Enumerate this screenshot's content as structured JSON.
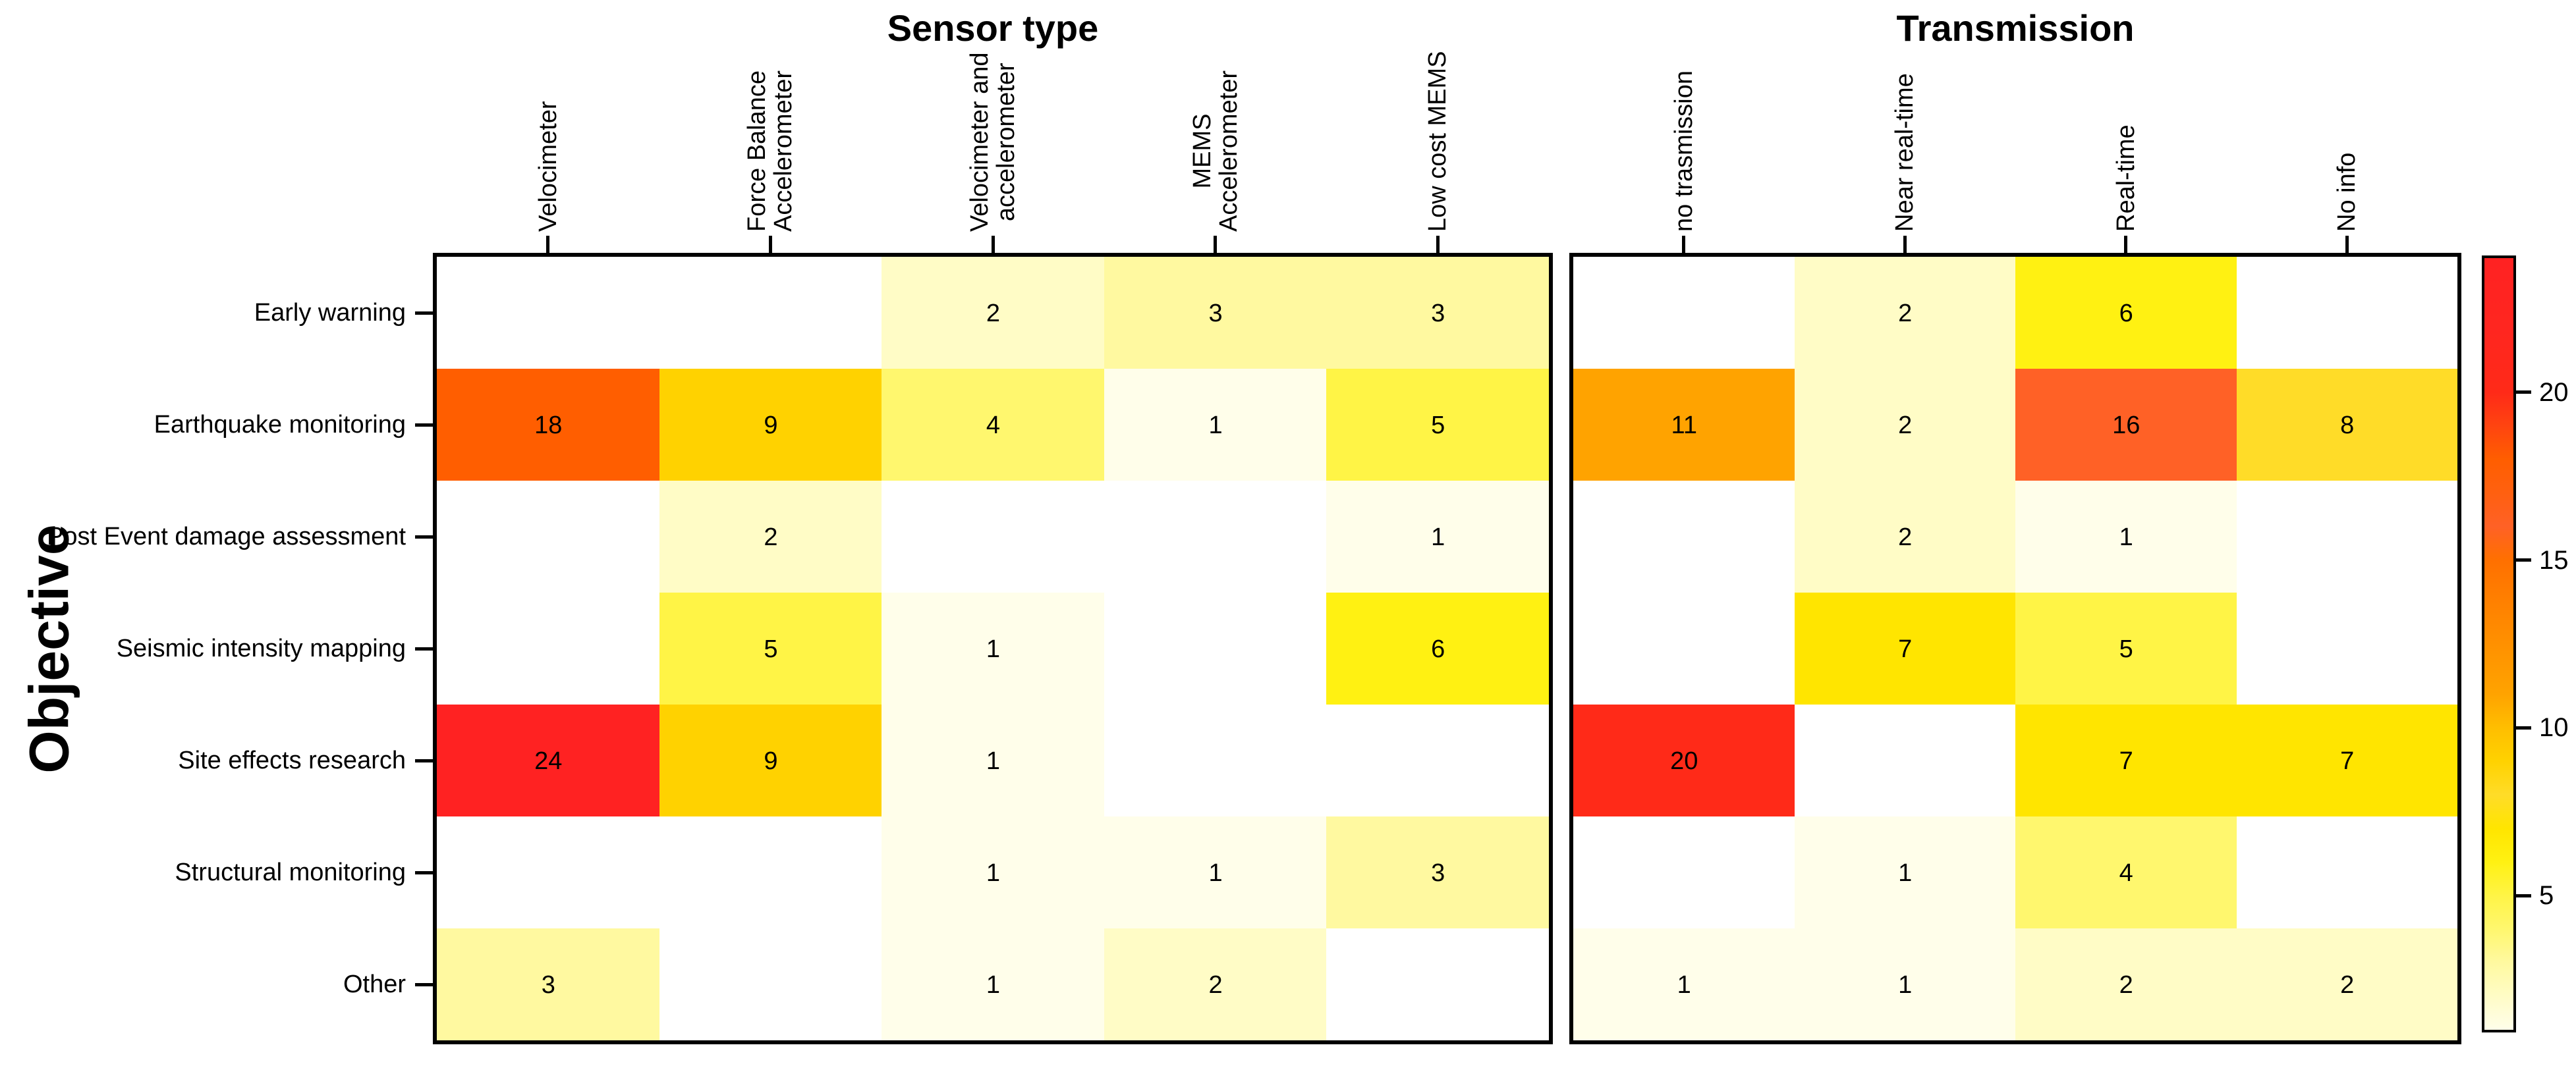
{
  "chart_data": {
    "type": "heatmap",
    "ylabel": "Objective",
    "rows": [
      "Early warning",
      "Earthquake monitoring",
      "Post Event damage assessment",
      "Seismic intensity mapping",
      "Site effects research",
      "Structural monitoring",
      "Other"
    ],
    "panels": [
      {
        "title": "Sensor type",
        "columns": [
          "Velocimeter",
          "Force Balance\nAccelerometer",
          "Velocimeter and\naccelerometer",
          "MEMS\nAccelerometer",
          "Low cost MEMS"
        ],
        "values": [
          [
            null,
            null,
            2,
            3,
            3
          ],
          [
            18,
            9,
            4,
            1,
            5
          ],
          [
            null,
            2,
            null,
            null,
            1
          ],
          [
            null,
            5,
            1,
            null,
            6
          ],
          [
            24,
            9,
            1,
            null,
            null
          ],
          [
            null,
            null,
            1,
            1,
            3
          ],
          [
            3,
            null,
            1,
            2,
            null
          ]
        ]
      },
      {
        "title": "Transmission",
        "columns": [
          "no trasmission",
          "Near real-time",
          "Real-time",
          "No info"
        ],
        "values": [
          [
            null,
            2,
            6,
            null
          ],
          [
            11,
            2,
            16,
            8
          ],
          [
            null,
            2,
            1,
            null
          ],
          [
            null,
            7,
            5,
            null
          ],
          [
            20,
            null,
            7,
            7
          ],
          [
            null,
            1,
            4,
            null
          ],
          [
            1,
            1,
            2,
            2
          ]
        ]
      }
    ],
    "colorbar": {
      "min": 1,
      "max": 24,
      "ticks": [
        5,
        10,
        15,
        20
      ]
    },
    "palette": {
      "blank": "#FFFFFF",
      "1": "#FFFEEA",
      "2": "#FFFCC6",
      "3": "#FFF9A0",
      "4": "#FFF76E",
      "5": "#FFF446",
      "6": "#FFF112",
      "7": "#FFE500",
      "8": "#FFDC28",
      "9": "#FFD200",
      "10": "#FFBE00",
      "11": "#FFA300",
      "12": "#FF9700",
      "13": "#FF8A00",
      "14": "#FF7D00",
      "15": "#FF7000",
      "16": "#FF6126",
      "17": "#FF6010",
      "18": "#FF5E00",
      "19": "#FF4410",
      "20": "#FF2A18",
      "21": "#FF281C",
      "22": "#FF2620",
      "23": "#FF2421",
      "24": "#FF2222"
    }
  }
}
